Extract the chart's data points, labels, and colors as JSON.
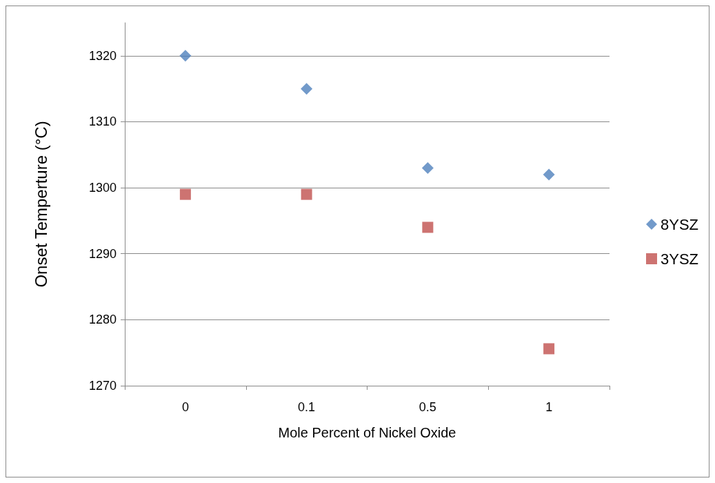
{
  "chart_data": {
    "type": "scatter",
    "xlabel": "Mole Percent of Nickel Oxide",
    "ylabel": "Onset Temperture (°C)",
    "categories": [
      "0",
      "0.1",
      "0.5",
      "1"
    ],
    "series": [
      {
        "name": "8YSZ",
        "color": "#4f81bd",
        "marker": "diamond",
        "values": [
          1320,
          1315,
          1303,
          1302
        ]
      },
      {
        "name": "3YSZ",
        "color": "#c0504d",
        "marker": "square",
        "values": [
          1299,
          1299,
          1294,
          1275.6
        ]
      }
    ],
    "ylim": [
      1270,
      1325
    ],
    "yticks": [
      1270,
      1280,
      1290,
      1300,
      1310,
      1320
    ],
    "grid": "y",
    "legend": "right"
  }
}
